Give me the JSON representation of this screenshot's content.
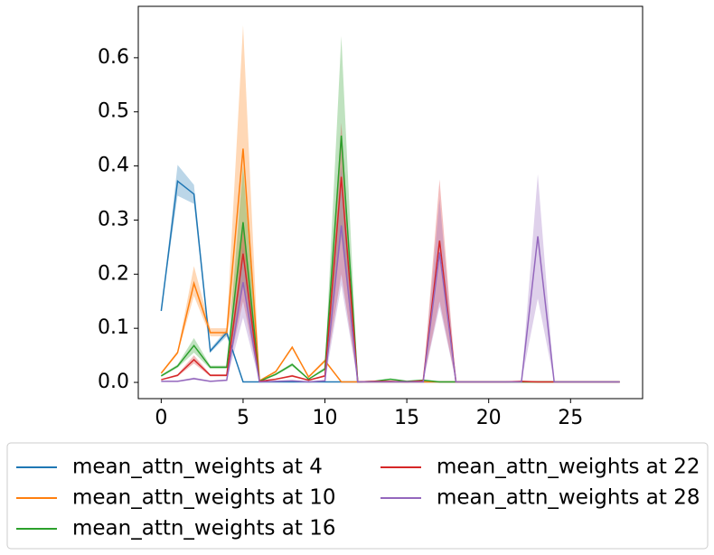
{
  "chart_data": {
    "type": "line",
    "x": [
      0,
      1,
      2,
      3,
      4,
      5,
      6,
      7,
      8,
      9,
      10,
      11,
      12,
      13,
      14,
      15,
      16,
      17,
      18,
      19,
      20,
      21,
      22,
      23,
      24,
      25,
      26,
      27,
      28
    ],
    "xlim": [
      -1.4,
      29.4
    ],
    "xticks": [
      0,
      5,
      10,
      15,
      20,
      25
    ],
    "ylim": [
      -0.03,
      0.695
    ],
    "yticks": [
      {
        "value": 0,
        "label": "0.0"
      },
      0.1,
      0.2,
      0.3,
      0.4,
      0.5,
      0.6
    ],
    "legend": "below",
    "series": [
      {
        "name": "mean_attn_weights at 4",
        "color": "#1f77b4",
        "values": [
          0.132,
          0.372,
          0.348,
          0.058,
          0.092,
          0.001,
          0.001,
          0.001,
          0.001,
          0.001,
          0.001,
          0.001,
          0.001,
          0.001,
          0.001,
          0.001,
          0.001,
          0.001,
          0.001,
          0.001,
          0.001,
          0.001,
          0.001,
          0.001,
          0.001,
          0.001,
          0.001,
          0.001,
          0.001
        ],
        "lower": [
          0.132,
          0.345,
          0.33,
          0.055,
          0.085,
          0.001,
          0.001,
          0.001,
          0.001,
          0.001,
          0.001,
          0.001,
          0.001,
          0.001,
          0.001,
          0.001,
          0.001,
          0.001,
          0.001,
          0.001,
          0.001,
          0.001,
          0.001,
          0.001,
          0.001,
          0.001,
          0.001,
          0.001,
          0.001
        ],
        "upper": [
          0.132,
          0.402,
          0.365,
          0.062,
          0.098,
          0.001,
          0.001,
          0.001,
          0.001,
          0.001,
          0.001,
          0.001,
          0.001,
          0.001,
          0.001,
          0.001,
          0.001,
          0.001,
          0.001,
          0.001,
          0.001,
          0.001,
          0.001,
          0.001,
          0.001,
          0.001,
          0.001,
          0.001,
          0.001
        ]
      },
      {
        "name": "mean_attn_weights at 10",
        "color": "#ff7f0e",
        "values": [
          0.017,
          0.055,
          0.183,
          0.092,
          0.092,
          0.432,
          0.003,
          0.02,
          0.065,
          0.01,
          0.04,
          0.001,
          0.001,
          0.001,
          0.001,
          0.001,
          0.001,
          0.001,
          0.001,
          0.001,
          0.001,
          0.001,
          0.001,
          0.001,
          0.001,
          0.001,
          0.001,
          0.001,
          0.001
        ],
        "lower": [
          0.015,
          0.052,
          0.16,
          0.085,
          0.085,
          0.24,
          0.002,
          0.018,
          0.062,
          0.008,
          0.037,
          0.001,
          0.001,
          0.001,
          0.001,
          0.001,
          0.001,
          0.001,
          0.001,
          0.001,
          0.001,
          0.001,
          0.001,
          0.001,
          0.001,
          0.001,
          0.001,
          0.001,
          0.001
        ],
        "upper": [
          0.019,
          0.058,
          0.215,
          0.1,
          0.1,
          0.66,
          0.004,
          0.022,
          0.068,
          0.012,
          0.043,
          0.001,
          0.001,
          0.001,
          0.001,
          0.001,
          0.001,
          0.001,
          0.001,
          0.001,
          0.001,
          0.001,
          0.001,
          0.001,
          0.001,
          0.001,
          0.001,
          0.001,
          0.001
        ]
      },
      {
        "name": "mean_attn_weights at 16",
        "color": "#2ca02c",
        "values": [
          0.012,
          0.03,
          0.068,
          0.028,
          0.028,
          0.296,
          0.002,
          0.015,
          0.033,
          0.006,
          0.025,
          0.456,
          0.001,
          0.002,
          0.006,
          0.002,
          0.004,
          0.001,
          0.001,
          0.001,
          0.001,
          0.001,
          0.001,
          0.001,
          0.001,
          0.001,
          0.001,
          0.001,
          0.001
        ],
        "lower": [
          0.01,
          0.027,
          0.055,
          0.025,
          0.025,
          0.18,
          0.001,
          0.013,
          0.03,
          0.005,
          0.022,
          0.27,
          0.001,
          0.002,
          0.005,
          0.002,
          0.003,
          0.001,
          0.001,
          0.001,
          0.001,
          0.001,
          0.001,
          0.001,
          0.001,
          0.001,
          0.001,
          0.001,
          0.001
        ],
        "upper": [
          0.014,
          0.033,
          0.082,
          0.031,
          0.031,
          0.4,
          0.003,
          0.017,
          0.036,
          0.007,
          0.028,
          0.64,
          0.001,
          0.002,
          0.007,
          0.002,
          0.005,
          0.001,
          0.001,
          0.001,
          0.001,
          0.001,
          0.001,
          0.001,
          0.001,
          0.001,
          0.001,
          0.001,
          0.001
        ]
      },
      {
        "name": "mean_attn_weights at 22",
        "color": "#d62728",
        "values": [
          0.005,
          0.013,
          0.042,
          0.013,
          0.013,
          0.238,
          0.002,
          0.006,
          0.012,
          0.004,
          0.012,
          0.38,
          0.001,
          0.002,
          0.002,
          0.001,
          0.003,
          0.262,
          0.001,
          0.001,
          0.001,
          0.001,
          0.002,
          0.001,
          0.001,
          0.001,
          0.001,
          0.001,
          0.001
        ],
        "lower": [
          0.004,
          0.011,
          0.035,
          0.011,
          0.011,
          0.15,
          0.001,
          0.005,
          0.01,
          0.003,
          0.01,
          0.2,
          0.001,
          0.001,
          0.002,
          0.001,
          0.002,
          0.15,
          0.001,
          0.001,
          0.001,
          0.001,
          0.001,
          0.001,
          0.001,
          0.001,
          0.001,
          0.001,
          0.001
        ],
        "upper": [
          0.006,
          0.015,
          0.05,
          0.015,
          0.015,
          0.3,
          0.003,
          0.007,
          0.014,
          0.005,
          0.014,
          0.48,
          0.001,
          0.003,
          0.003,
          0.001,
          0.004,
          0.375,
          0.001,
          0.001,
          0.001,
          0.001,
          0.003,
          0.001,
          0.001,
          0.001,
          0.001,
          0.001,
          0.001
        ]
      },
      {
        "name": "mean_attn_weights at 28",
        "color": "#9467bd",
        "values": [
          0.002,
          0.002,
          0.007,
          0.002,
          0.004,
          0.185,
          0.001,
          0.002,
          0.003,
          0.001,
          0.003,
          0.29,
          0.001,
          0.001,
          0.001,
          0.001,
          0.001,
          0.24,
          0.001,
          0.001,
          0.001,
          0.001,
          0.001,
          0.27,
          0.001,
          0.001,
          0.001,
          0.001,
          0.001
        ],
        "lower": [
          0.001,
          0.001,
          0.005,
          0.001,
          0.003,
          0.12,
          0.001,
          0.001,
          0.002,
          0.001,
          0.002,
          0.18,
          0.001,
          0.001,
          0.001,
          0.001,
          0.001,
          0.14,
          0.001,
          0.001,
          0.001,
          0.001,
          0.001,
          0.155,
          0.001,
          0.001,
          0.001,
          0.001,
          0.001
        ],
        "upper": [
          0.003,
          0.003,
          0.009,
          0.003,
          0.005,
          0.25,
          0.001,
          0.003,
          0.004,
          0.001,
          0.004,
          0.4,
          0.001,
          0.001,
          0.001,
          0.001,
          0.001,
          0.34,
          0.001,
          0.001,
          0.001,
          0.001,
          0.001,
          0.385,
          0.001,
          0.001,
          0.001,
          0.001,
          0.001
        ]
      }
    ]
  }
}
